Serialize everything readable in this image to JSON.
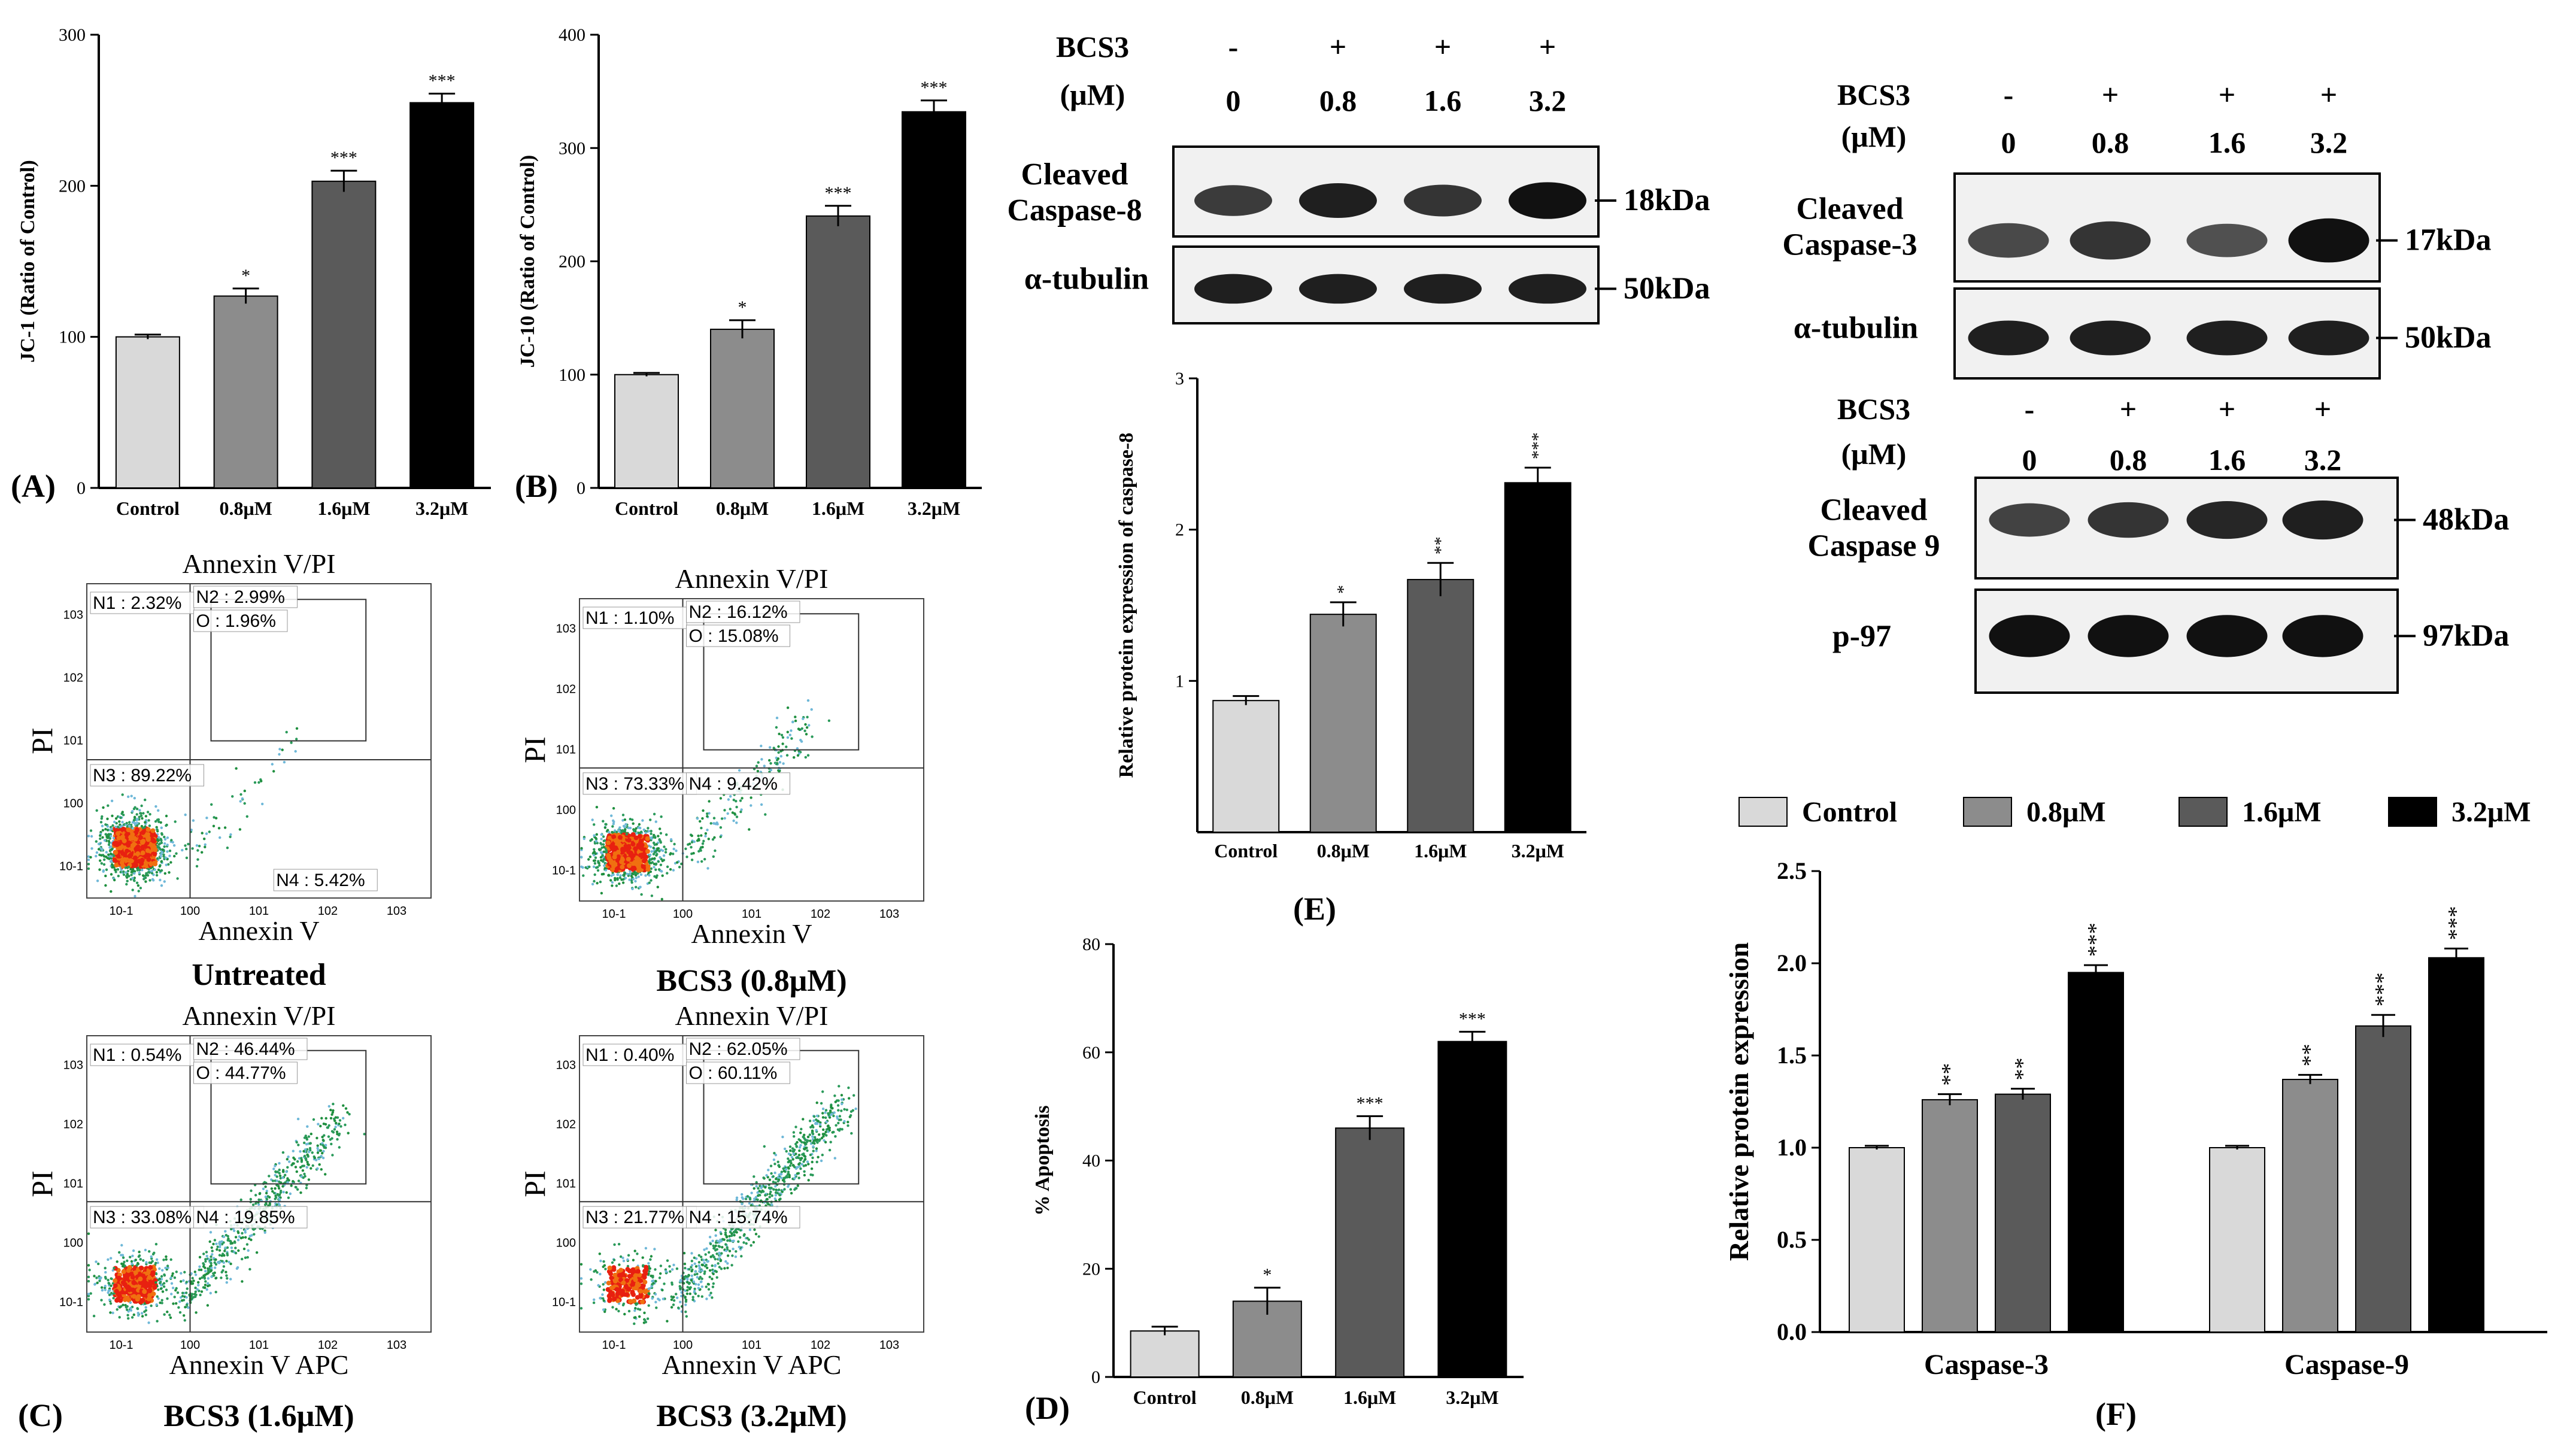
{
  "figure": {
    "bar_colors": [
      "#d9d9d9",
      "#8c8c8c",
      "#5a5a5a",
      "#000000"
    ],
    "panel_labels": {
      "a": "(A)",
      "b": "(B)",
      "c": "(C)",
      "d": "(D)",
      "e": "(E)",
      "f": "(F)"
    }
  },
  "chart_data": [
    {
      "id": "A",
      "type": "bar",
      "categories": [
        "Control",
        "0.8μM",
        "1.6μM",
        "3.2μM"
      ],
      "values": [
        100,
        127,
        203,
        255
      ],
      "errors": [
        1.5,
        5,
        7,
        6
      ],
      "significance": [
        "",
        "*",
        "***",
        "***"
      ],
      "ylabel": "JC-1 (Ratio of Control)",
      "ylim": [
        0,
        300
      ],
      "yticks": [
        0,
        100,
        200,
        300
      ],
      "grid": false
    },
    {
      "id": "B",
      "type": "bar",
      "categories": [
        "Control",
        "0.8μM",
        "1.6μM",
        "3.2μM"
      ],
      "values": [
        100,
        140,
        240,
        332
      ],
      "errors": [
        1.5,
        8,
        9,
        10
      ],
      "significance": [
        "",
        "*",
        "***",
        "***"
      ],
      "ylabel": "JC-10 (Ratio of Control)",
      "ylim": [
        0,
        400
      ],
      "yticks": [
        0,
        100,
        200,
        300,
        400
      ],
      "grid": false
    },
    {
      "id": "E",
      "type": "bar",
      "categories": [
        "Control",
        "0.8μM",
        "1.6μM",
        "3.2μM"
      ],
      "values": [
        0.87,
        1.44,
        1.67,
        2.31
      ],
      "errors": [
        0.03,
        0.08,
        0.11,
        0.1
      ],
      "significance": [
        "",
        "*",
        "**",
        "***"
      ],
      "ylabel": "Relative protein expression of caspase-8",
      "ylim": [
        0,
        3
      ],
      "yticks": [
        1,
        2,
        3
      ],
      "grid": false
    },
    {
      "id": "D",
      "type": "bar",
      "categories": [
        "Control",
        "0.8μM",
        "1.6μM",
        "3.2μM"
      ],
      "values": [
        8.5,
        14,
        46,
        62
      ],
      "errors": [
        0.8,
        2.5,
        2.2,
        1.8
      ],
      "significance": [
        "",
        "*",
        "***",
        "***"
      ],
      "ylabel": "% Apoptosis",
      "ylim": [
        0,
        80
      ],
      "yticks": [
        0,
        20,
        40,
        60,
        80
      ],
      "grid": false
    },
    {
      "id": "F",
      "type": "bar",
      "categories": [
        "Caspase-3",
        "Caspase-9"
      ],
      "series": [
        {
          "name": "Control",
          "values": [
            1.0,
            1.0
          ],
          "errors": [
            0.01,
            0.01
          ],
          "significance": [
            "",
            ""
          ]
        },
        {
          "name": "0.8μM",
          "values": [
            1.26,
            1.37
          ],
          "errors": [
            0.03,
            0.025
          ],
          "significance": [
            "**",
            "**"
          ]
        },
        {
          "name": "1.6μM",
          "values": [
            1.29,
            1.66
          ],
          "errors": [
            0.03,
            0.06
          ],
          "significance": [
            "**",
            "***"
          ]
        },
        {
          "name": "3.2μM",
          "values": [
            1.95,
            2.03
          ],
          "errors": [
            0.04,
            0.05
          ],
          "significance": [
            "***",
            "***"
          ]
        }
      ],
      "ylabel": "Relative protein expression",
      "ylim": [
        0,
        2.5
      ],
      "yticks": [
        "0.0",
        "0.5",
        "1.0",
        "1.5",
        "2.0",
        "2.5"
      ],
      "legend_position": "top",
      "grid": false
    }
  ],
  "flow": {
    "title": "Annexin V/PI",
    "y_label": "PI",
    "x_label_top": "Annexin V",
    "x_label_bottom": "Annexin V APC",
    "tick_exponents": [
      "-1",
      "0",
      "1",
      "2",
      "3"
    ],
    "plots": [
      {
        "caption": "Untreated",
        "n1": "N1 : 2.32%",
        "n2": "N2 : 2.99%",
        "o": "O : 1.96%",
        "n3": "N3 : 89.22%",
        "n4": "N4 : 5.42%",
        "apoptotic_fraction": 0.05,
        "spread": 0.2
      },
      {
        "caption": "BCS3 (0.8μM)",
        "n1": "N1 : 1.10%",
        "n2": "N2 : 16.12%",
        "o": "O : 15.08%",
        "n3": "N3 : 73.33%",
        "n4": "N4 : 9.42%",
        "apoptotic_fraction": 0.2,
        "spread": 0.4
      },
      {
        "caption": "BCS3 (1.6μM)",
        "n1": "N1 : 0.54%",
        "n2": "N2 : 46.44%",
        "o": "O : 44.77%",
        "n3": "N3 : 33.08%",
        "n4": "N4 : 19.85%",
        "apoptotic_fraction": 0.55,
        "spread": 0.8
      },
      {
        "caption": "BCS3 (3.2μM)",
        "n1": "N1 : 0.40%",
        "n2": "N2 : 62.05%",
        "o": "O : 60.11%",
        "n3": "N3 : 21.77%",
        "n4": "N4 : 15.74%",
        "apoptotic_fraction": 0.7,
        "spread": 0.9
      }
    ]
  },
  "blots": {
    "caspase8": {
      "header_label": "BCS3",
      "unit_label": "(μM)",
      "signs": [
        "-",
        "+",
        "+",
        "+"
      ],
      "doses": [
        "0",
        "0.8",
        "1.6",
        "3.2"
      ],
      "rows": [
        {
          "label_line1": "Cleaved",
          "label_line2": "Caspase-8",
          "marker": "18kDa",
          "intensities": [
            0.65,
            0.85,
            0.7,
            0.95
          ]
        },
        {
          "label_line1": "α-tubulin",
          "label_line2": "",
          "marker": "50kDa",
          "intensities": [
            0.85,
            0.85,
            0.85,
            0.85
          ]
        }
      ]
    },
    "caspase3": {
      "header_label": "BCS3",
      "unit_label": "(μM)",
      "signs": [
        "-",
        "+",
        "+",
        "+"
      ],
      "doses": [
        "0",
        "0.8",
        "1.6",
        "3.2"
      ],
      "rows": [
        {
          "label_line1": "Cleaved",
          "label_line2": "Caspase-3",
          "marker": "17kDa",
          "intensities": [
            0.55,
            0.7,
            0.5,
            0.95
          ]
        },
        {
          "label_line1": "α-tubulin",
          "label_line2": "",
          "marker": "50kDa",
          "intensities": [
            0.85,
            0.85,
            0.85,
            0.85
          ]
        }
      ]
    },
    "caspase9": {
      "header_label": "BCS3",
      "unit_label": "(μM)",
      "signs": [
        "-",
        "+",
        "+",
        "+"
      ],
      "doses": [
        "0",
        "0.8",
        "1.6",
        "3.2"
      ],
      "rows": [
        {
          "label_line1": "Cleaved",
          "label_line2": "Caspase 9",
          "marker": "48kDa",
          "intensities": [
            0.6,
            0.7,
            0.8,
            0.85
          ]
        },
        {
          "label_line1": "p-97",
          "label_line2": "",
          "marker": "97kDa",
          "intensities": [
            0.95,
            0.95,
            0.95,
            0.95
          ]
        }
      ]
    }
  }
}
